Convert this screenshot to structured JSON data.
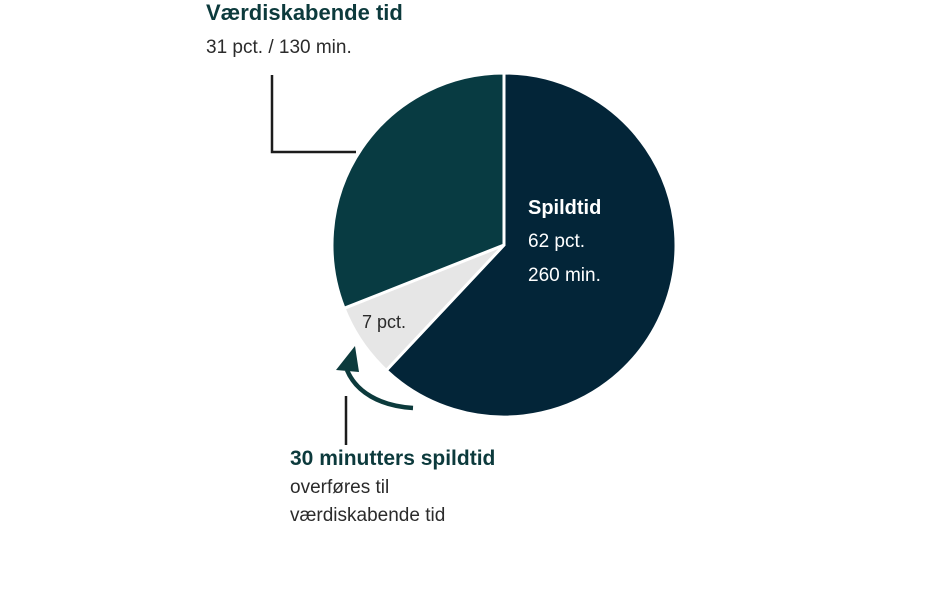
{
  "chart_data": {
    "type": "pie",
    "slices": [
      {
        "name": "Spildtid",
        "percent": 62,
        "minutes": 260,
        "color": "#032538"
      },
      {
        "name": "Overføres",
        "percent": 7,
        "color": "#e6e6e6"
      },
      {
        "name": "Værdiskabende tid",
        "percent": 31,
        "minutes": 130,
        "color": "#083b42"
      }
    ],
    "labels": {
      "value_added_title": "Værdiskabende tid",
      "value_added_value": "31 pct. / 130 min.",
      "waste_title": "Spildtid",
      "waste_pct": "62 pct.",
      "waste_min": "260 min.",
      "transfer_pct": "7 pct.",
      "transfer_title": "30 minutters spildtid",
      "transfer_line1": "overføres til",
      "transfer_line2": "værdiskabende tid"
    }
  }
}
